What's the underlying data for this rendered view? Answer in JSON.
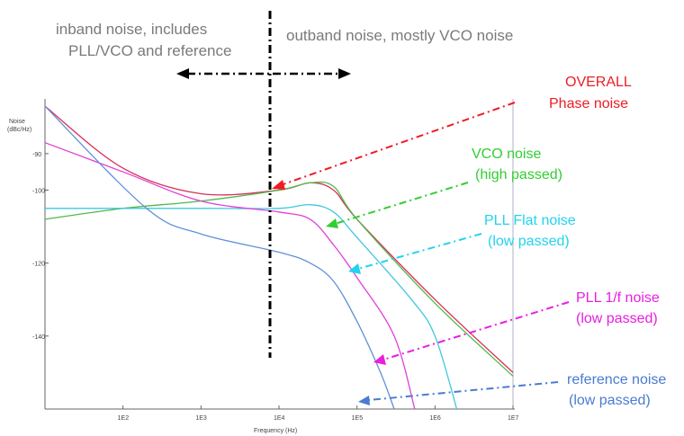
{
  "chart_data": {
    "type": "line",
    "title": "",
    "xlabel": "Frequency (Hz)",
    "ylabel": "Noise (dBc/Hz)",
    "xscale": "log",
    "xlim": [
      10,
      10000000
    ],
    "ylim": [
      -160,
      -75
    ],
    "x_ticks": [
      100,
      1000,
      10000,
      100000,
      1000000,
      10000000
    ],
    "x_tick_labels": [
      "1E2",
      "1E3",
      "1E4",
      "1E5",
      "1E6",
      "1E7"
    ],
    "y_ticks": [
      -90,
      -100,
      -120,
      -140
    ],
    "y_tick_labels": [
      "-90",
      "-100",
      "-120",
      "-140"
    ],
    "grid": false,
    "series": [
      {
        "key": "overall",
        "color": "#d8305a",
        "points": [
          [
            10,
            -77
          ],
          [
            100,
            -94
          ],
          [
            1000,
            -101
          ],
          [
            10000,
            -100
          ],
          [
            25000,
            -98
          ],
          [
            50000,
            -100
          ],
          [
            100000,
            -108
          ],
          [
            1000000,
            -130
          ],
          [
            10000000,
            -150
          ]
        ]
      },
      {
        "key": "vco",
        "color": "#50b848",
        "points": [
          [
            10,
            -108
          ],
          [
            100,
            -105
          ],
          [
            1000,
            -103
          ],
          [
            10000,
            -100
          ],
          [
            25000,
            -98
          ],
          [
            50000,
            -99
          ],
          [
            100000,
            -108
          ],
          [
            1000000,
            -131
          ],
          [
            10000000,
            -151
          ]
        ]
      },
      {
        "key": "pll_flat",
        "color": "#40c8e0",
        "points": [
          [
            10,
            -105
          ],
          [
            1000,
            -105
          ],
          [
            10000,
            -105
          ],
          [
            25000,
            -104
          ],
          [
            50000,
            -106
          ],
          [
            100000,
            -113
          ],
          [
            500000,
            -130
          ],
          [
            1000000,
            -140
          ],
          [
            1900000,
            -160
          ]
        ]
      },
      {
        "key": "pll_1f",
        "color": "#e040d8",
        "points": [
          [
            10,
            -87
          ],
          [
            100,
            -95
          ],
          [
            1000,
            -103
          ],
          [
            10000,
            -106
          ],
          [
            25000,
            -108
          ],
          [
            50000,
            -115
          ],
          [
            100000,
            -124
          ],
          [
            300000,
            -140
          ],
          [
            550000,
            -160
          ]
        ]
      },
      {
        "key": "reference",
        "color": "#6090d8",
        "points": [
          [
            10,
            -77
          ],
          [
            200,
            -105
          ],
          [
            1000,
            -112
          ],
          [
            10000,
            -117
          ],
          [
            25000,
            -120
          ],
          [
            50000,
            -125
          ],
          [
            100000,
            -136
          ],
          [
            200000,
            -150
          ],
          [
            300000,
            -160
          ]
        ]
      }
    ]
  },
  "annotations": {
    "inband_line1": "inband noise, includes",
    "inband_line2": "PLL/VCO and reference",
    "outband": "outband noise, mostly VCO noise",
    "overall_line1": "OVERALL",
    "overall_line2": "Phase noise",
    "vco_line1": "VCO noise",
    "vco_line2": "(high passed)",
    "pll_flat_line1": "PLL Flat  noise",
    "pll_flat_line2": "(low passed)",
    "pll_1f_line1": "PLL 1/f  noise",
    "pll_1f_line2": "(low passed)",
    "ref_line1": "reference noise",
    "ref_line2": "(low passed)"
  },
  "colors": {
    "overall": "#ee1c24",
    "vco": "#32cd32",
    "pll_flat": "#22d3ee",
    "pll_1f": "#e81ee0",
    "reference": "#4a7bd0",
    "divider": "#000000"
  }
}
